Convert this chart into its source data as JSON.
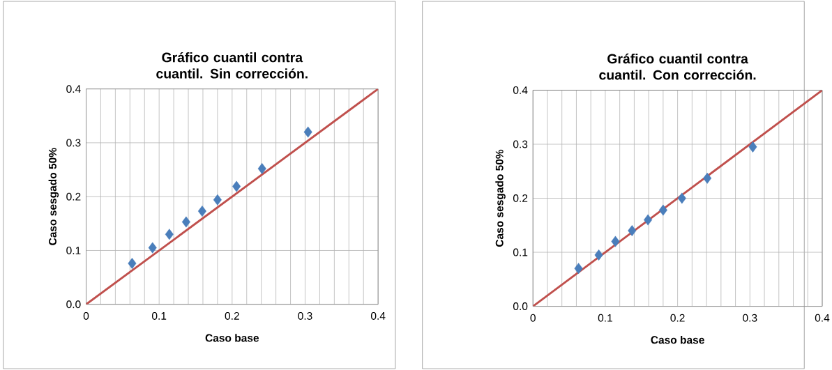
{
  "chart_data": [
    {
      "type": "scatter",
      "title": "Gráfico cuantil contra cuantil. Sin corrección.",
      "xlabel": "Caso base",
      "ylabel": "Caso sesgado 50%",
      "xlim": [
        0,
        0.4
      ],
      "ylim": [
        0,
        0.4
      ],
      "xticks": [
        0,
        {
          "value": 0.02,
          "label": null
        },
        {
          "value": 0.04,
          "label": null
        },
        {
          "value": 0.06,
          "label": null
        },
        {
          "value": 0.08,
          "label": null
        },
        0.1,
        {
          "value": 0.12,
          "label": null
        },
        {
          "value": 0.14,
          "label": null
        },
        {
          "value": 0.16,
          "label": null
        },
        {
          "value": 0.18,
          "label": null
        },
        0.2,
        {
          "value": 0.22,
          "label": null
        },
        {
          "value": 0.24,
          "label": null
        },
        {
          "value": 0.26,
          "label": null
        },
        {
          "value": 0.28,
          "label": null
        },
        0.3,
        {
          "value": 0.32,
          "label": null
        },
        {
          "value": 0.34,
          "label": null
        },
        {
          "value": 0.36,
          "label": null
        },
        {
          "value": 0.38,
          "label": null
        },
        0.4
      ],
      "yticks": [
        {
          "value": 0,
          "label": "0.0"
        },
        0.1,
        0.2,
        0.3,
        0.4
      ],
      "grid": true,
      "series": [
        {
          "marker": "diamond",
          "color": "#4a7ebb",
          "x": [
            0.063,
            0.091,
            0.114,
            0.137,
            0.159,
            0.18,
            0.206,
            0.241,
            0.304
          ],
          "values": [
            0.076,
            0.105,
            0.13,
            0.153,
            0.173,
            0.194,
            0.219,
            0.252,
            0.32
          ]
        },
        {
          "type": "line",
          "marker": "none",
          "color": "#c0504d",
          "x": [
            0,
            0.4
          ],
          "values": [
            0,
            0.4
          ]
        }
      ]
    },
    {
      "type": "scatter",
      "title": "Gráfico cuantil contra cuantil. Con corrección.",
      "xlabel": "Caso base",
      "ylabel": "Caso sesgado 50%",
      "xlim": [
        0,
        0.4
      ],
      "ylim": [
        0,
        0.4
      ],
      "xticks": [
        0,
        {
          "value": 0.02,
          "label": null
        },
        {
          "value": 0.04,
          "label": null
        },
        {
          "value": 0.06,
          "label": null
        },
        {
          "value": 0.08,
          "label": null
        },
        0.1,
        {
          "value": 0.12,
          "label": null
        },
        {
          "value": 0.14,
          "label": null
        },
        {
          "value": 0.16,
          "label": null
        },
        {
          "value": 0.18,
          "label": null
        },
        0.2,
        {
          "value": 0.22,
          "label": null
        },
        {
          "value": 0.24,
          "label": null
        },
        {
          "value": 0.26,
          "label": null
        },
        {
          "value": 0.28,
          "label": null
        },
        0.3,
        {
          "value": 0.32,
          "label": null
        },
        {
          "value": 0.34,
          "label": null
        },
        {
          "value": 0.36,
          "label": null
        },
        {
          "value": 0.38,
          "label": null
        },
        0.4
      ],
      "yticks": [
        {
          "value": 0,
          "label": "0.0"
        },
        0.1,
        0.2,
        0.3,
        0.4
      ],
      "grid": true,
      "series": [
        {
          "marker": "diamond",
          "color": "#4a7ebb",
          "x": [
            0.063,
            0.091,
            0.114,
            0.137,
            0.159,
            0.18,
            0.206,
            0.241,
            0.304
          ],
          "values": [
            0.07,
            0.095,
            0.12,
            0.14,
            0.16,
            0.178,
            0.2,
            0.237,
            0.295
          ]
        },
        {
          "type": "line",
          "marker": "none",
          "color": "#c0504d",
          "x": [
            0,
            0.4
          ],
          "values": [
            0,
            0.4
          ]
        }
      ]
    }
  ]
}
